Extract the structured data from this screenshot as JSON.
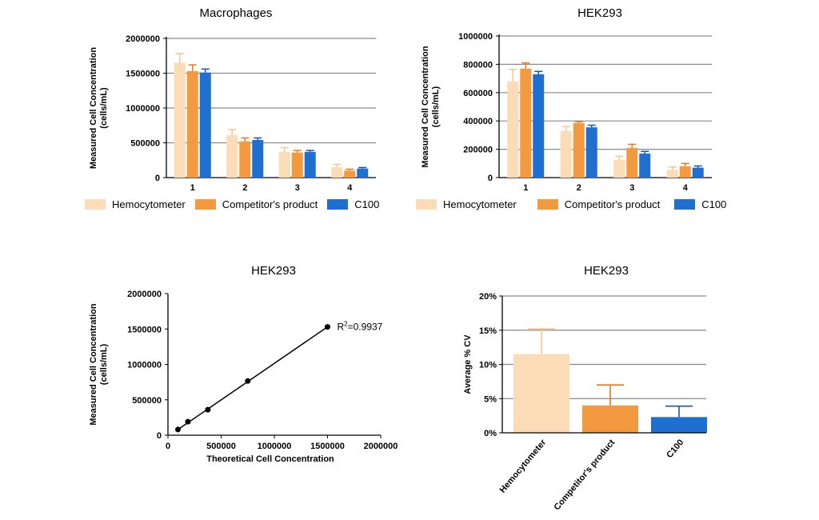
{
  "colors": {
    "hemocytometer": "#fbdcb7",
    "competitor": "#f39a40",
    "c100": "#1f6fd1",
    "hemocytometer_err": "#f4c78e",
    "competitor_err": "#e07c1f",
    "c100_err": "#1a55b0",
    "grid": "#8a8a8a"
  },
  "legend": {
    "items": [
      "Hemocytometer",
      "Competitor's product",
      "C100"
    ]
  },
  "chart_data": [
    {
      "type": "bar",
      "title": "Macrophages",
      "ylabel": "Measured Cell Concentration (cells/mL)",
      "xlabel": "",
      "categories": [
        "1",
        "2",
        "3",
        "4"
      ],
      "ylim": [
        0,
        2000000
      ],
      "yticks": [
        0,
        500000,
        1000000,
        1500000,
        2000000
      ],
      "ytick_labels": [
        "0",
        "500000",
        "1000000",
        "1500000",
        "2000000"
      ],
      "grid": true,
      "series": [
        {
          "name": "Hemocytometer",
          "values": [
            1650000,
            610000,
            370000,
            150000
          ],
          "errors": [
            130000,
            80000,
            60000,
            40000
          ]
        },
        {
          "name": "Competitor's product",
          "values": [
            1530000,
            520000,
            360000,
            100000
          ],
          "errors": [
            90000,
            50000,
            30000,
            20000
          ]
        },
        {
          "name": "C100",
          "values": [
            1510000,
            540000,
            370000,
            130000
          ],
          "errors": [
            50000,
            30000,
            20000,
            15000
          ]
        }
      ]
    },
    {
      "type": "bar",
      "title": "HEK293",
      "ylabel": "Measured Cell Concentration (cells/mL)",
      "xlabel": "",
      "categories": [
        "1",
        "2",
        "3",
        "4"
      ],
      "ylim": [
        0,
        1000000
      ],
      "yticks": [
        0,
        200000,
        400000,
        600000,
        800000,
        1000000
      ],
      "ytick_labels": [
        "0",
        "200000",
        "400000",
        "600000",
        "800000",
        "1000000"
      ],
      "grid": true,
      "series": [
        {
          "name": "Hemocytometer",
          "values": [
            680000,
            330000,
            125000,
            55000
          ],
          "errors": [
            85000,
            30000,
            25000,
            20000
          ]
        },
        {
          "name": "Competitor's product",
          "values": [
            770000,
            385000,
            210000,
            80000
          ],
          "errors": [
            40000,
            10000,
            25000,
            20000
          ]
        },
        {
          "name": "C100",
          "values": [
            730000,
            355000,
            170000,
            70000
          ],
          "errors": [
            20000,
            15000,
            15000,
            12000
          ]
        }
      ]
    },
    {
      "type": "scatter",
      "title": "HEK293",
      "xlabel": "Theoretical Cell Concentration",
      "ylabel": "Measured Cell Concentration (cells/mL)",
      "xlim": [
        0,
        2000000
      ],
      "ylim": [
        0,
        2000000
      ],
      "xticks": [
        0,
        500000,
        1000000,
        1500000,
        2000000
      ],
      "xtick_labels": [
        "0",
        "500000",
        "1000000",
        "1500000",
        "2000000"
      ],
      "yticks": [
        0,
        500000,
        1000000,
        1500000,
        2000000
      ],
      "ytick_labels": [
        "0",
        "500000",
        "1000000",
        "1500000",
        "2000000"
      ],
      "grid": false,
      "x": [
        93750,
        187500,
        375000,
        750000,
        1500000
      ],
      "y": [
        80000,
        190000,
        360000,
        765000,
        1530000
      ],
      "annotation": {
        "prefix": "R",
        "sup": "2",
        "suffix": "=0.9937"
      }
    },
    {
      "type": "bar",
      "title": "HEK293",
      "ylabel": "Average % CV",
      "xlabel": "",
      "categories": [
        "Hemocytometer",
        "Competitor's product",
        "C100"
      ],
      "ylim": [
        0,
        20
      ],
      "yticks": [
        0,
        5,
        10,
        15,
        20
      ],
      "ytick_labels": [
        "0%",
        "5%",
        "10%",
        "15%",
        "20%"
      ],
      "grid": true,
      "values": [
        11.5,
        4.0,
        2.3
      ],
      "errors": [
        3.7,
        3.0,
        1.6
      ]
    }
  ]
}
